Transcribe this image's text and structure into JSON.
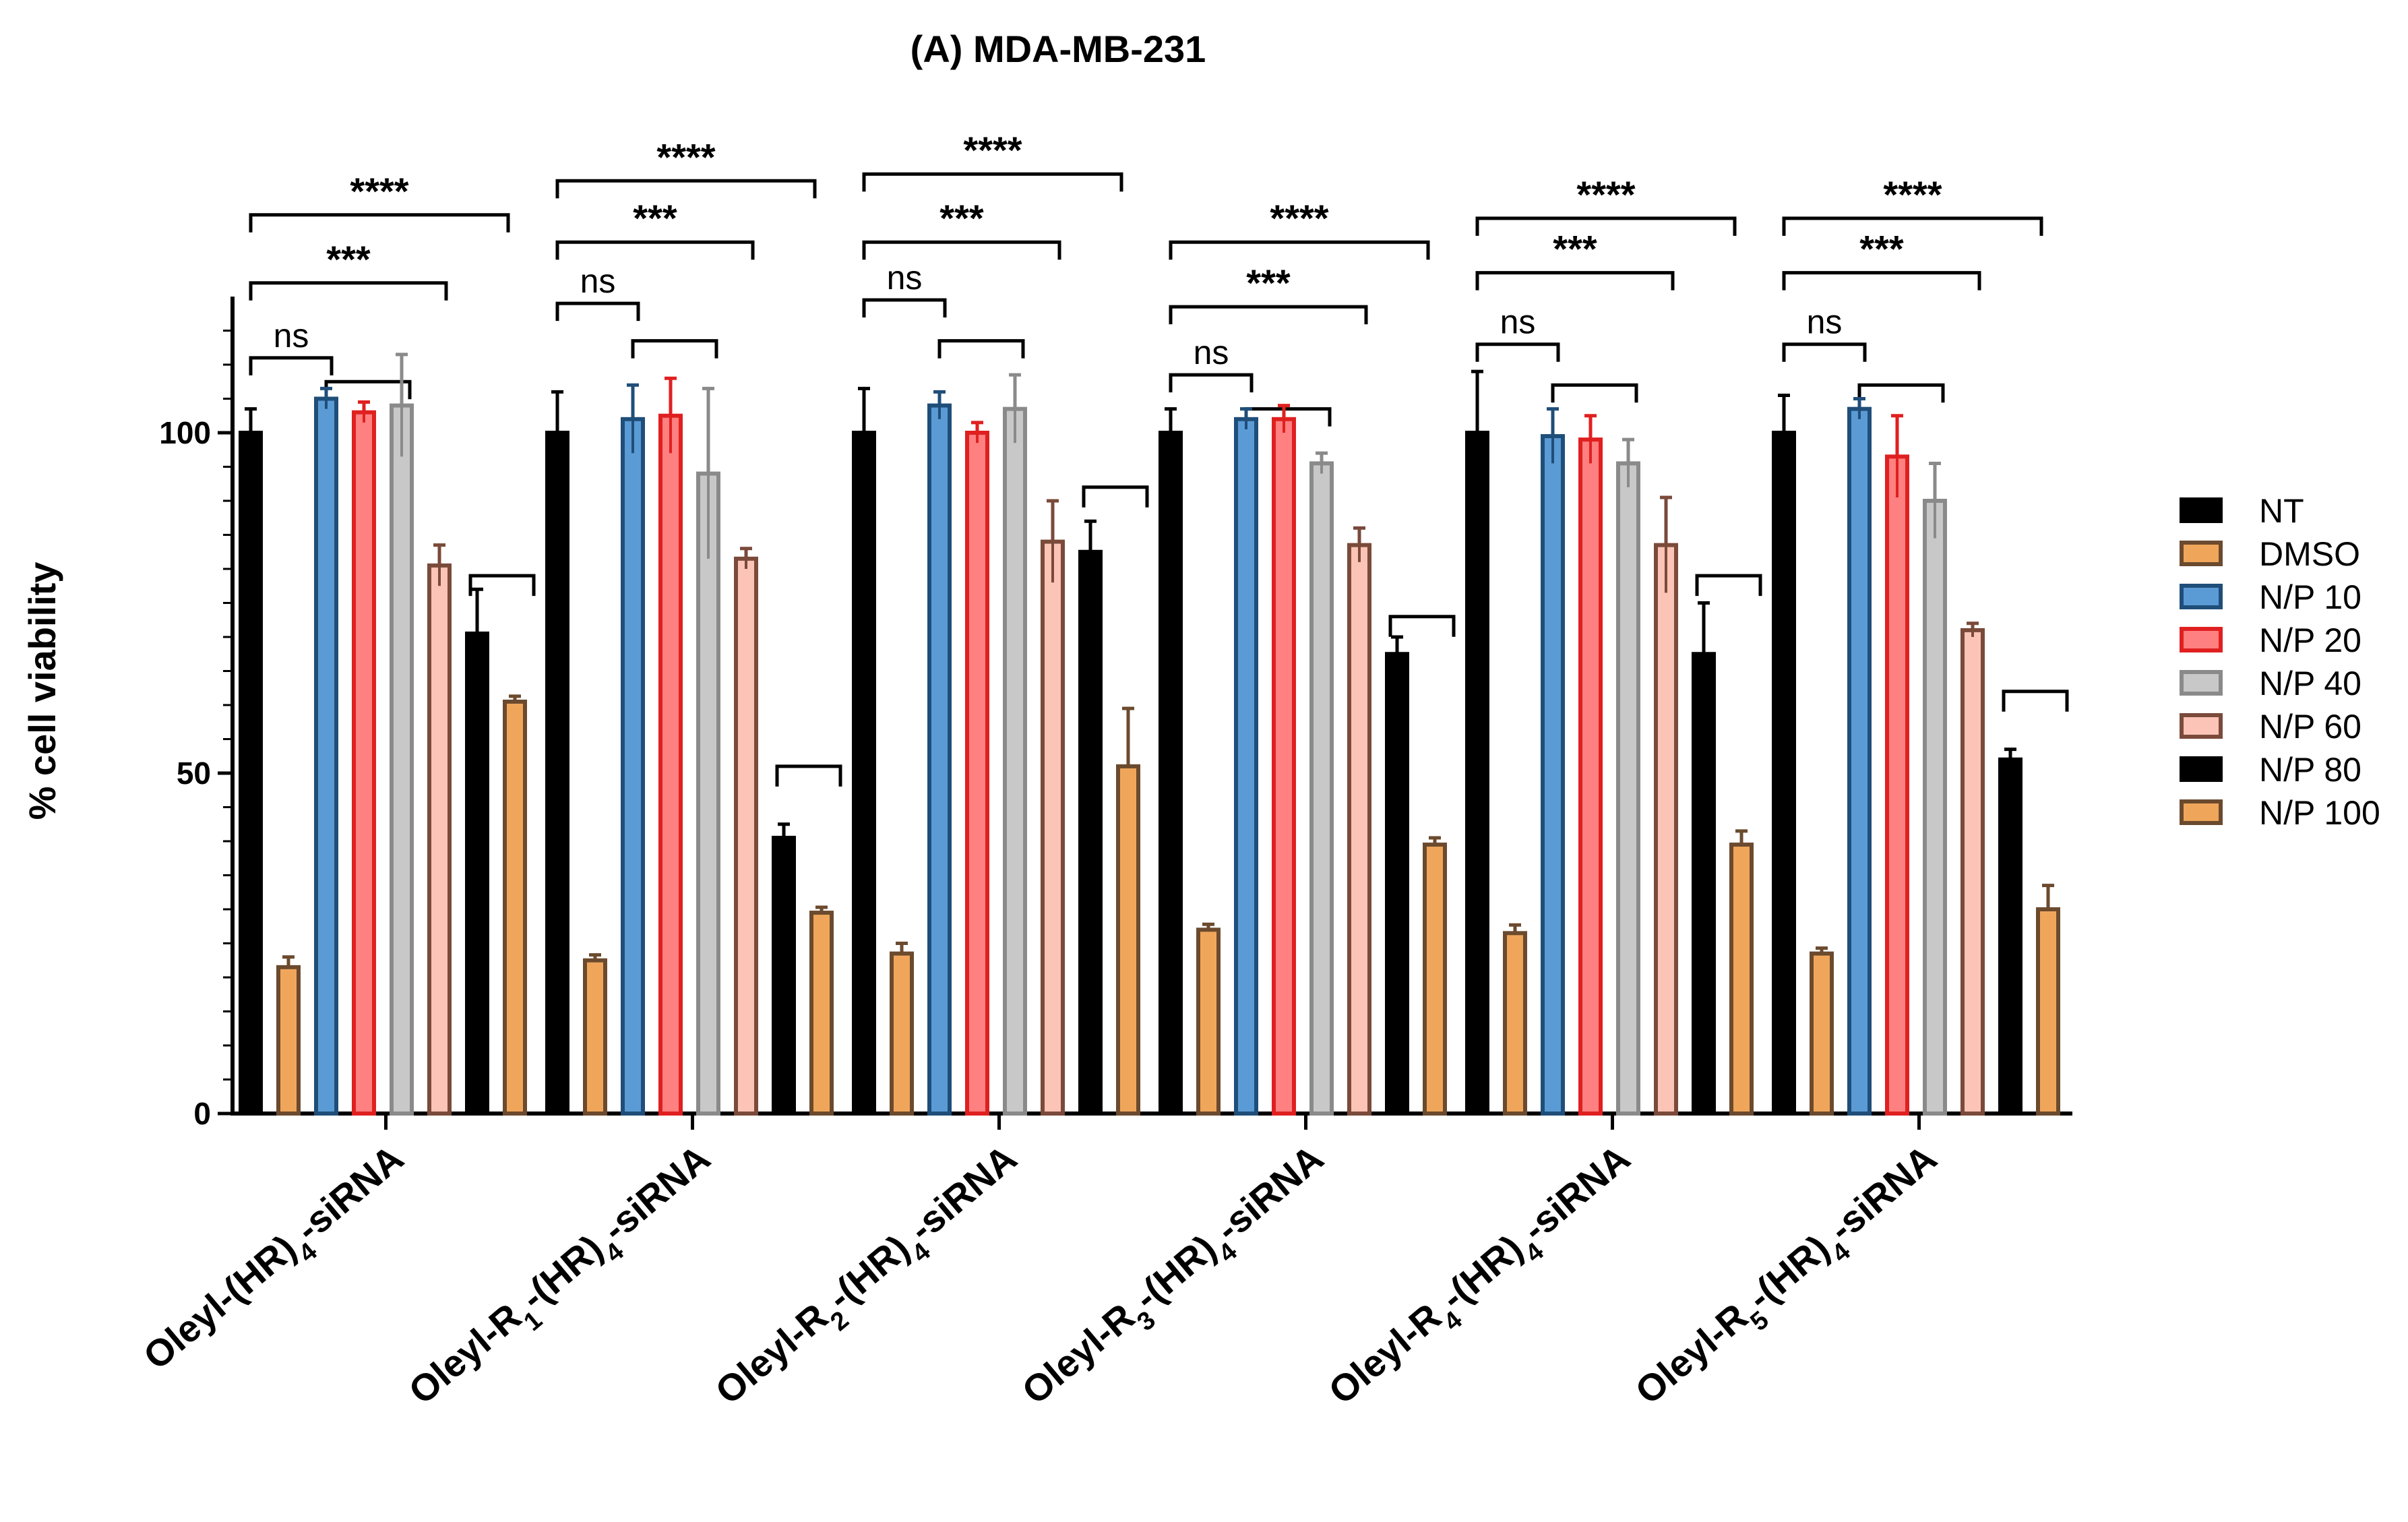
{
  "chart_data": {
    "type": "bar",
    "title": "(A) MDA-MB-231",
    "xlabel": "",
    "ylabel": "% cell viability",
    "ylim": [
      0,
      120
    ],
    "yticks": [
      "0",
      "50",
      "100"
    ],
    "categories": [
      {
        "prefix": "Oleyl-",
        "sub": "",
        "mid": "(HR)",
        "sub2": "4",
        "suffix": "-siRNA"
      },
      {
        "prefix": "Oleyl-R",
        "sub": "1",
        "mid": "-(HR)",
        "sub2": "4",
        "suffix": "-siRNA"
      },
      {
        "prefix": "Oleyl-R",
        "sub": "2",
        "mid": "-(HR)",
        "sub2": "4",
        "suffix": "-siRNA"
      },
      {
        "prefix": "Oleyl-R",
        "sub": "3",
        "mid": "-(HR)",
        "sub2": "4",
        "suffix": "-siRNA"
      },
      {
        "prefix": "Oleyl-R",
        "sub": "4",
        "mid": "-(HR)",
        "sub2": "4",
        "suffix": "-siRNA"
      },
      {
        "prefix": "Oleyl-R",
        "sub": "5",
        "mid": "-(HR)",
        "sub2": "4",
        "suffix": "-siRNA"
      }
    ],
    "series": [
      {
        "name": "NT",
        "fill": "#000000",
        "stroke": "#000000",
        "values": [
          100,
          100,
          100,
          100,
          100,
          100
        ],
        "errors": [
          3.5,
          6,
          6.5,
          3.5,
          9,
          5.5
        ]
      },
      {
        "name": "DMSO",
        "fill": "#f0a65a",
        "stroke": "#6b4a2e",
        "values": [
          21.5,
          22.5,
          23.5,
          27,
          26.5,
          23.5
        ],
        "errors": [
          1.5,
          0.8,
          1.5,
          0.8,
          1.2,
          0.8
        ]
      },
      {
        "name": "N/P 10",
        "fill": "#5b9bd5",
        "stroke": "#1f4e79",
        "values": [
          105,
          102,
          104,
          102,
          99.5,
          103.5
        ],
        "errors": [
          1.5,
          5,
          2,
          1.5,
          4,
          1.5
        ]
      },
      {
        "name": "N/P 20",
        "fill": "#ff8080",
        "stroke": "#e02020",
        "values": [
          103,
          102.5,
          100,
          102,
          99,
          96.5
        ],
        "errors": [
          1.5,
          5.5,
          1.5,
          2,
          3.5,
          6
        ]
      },
      {
        "name": "N/P 40",
        "fill": "#c8c8c8",
        "stroke": "#8a8a8a",
        "values": [
          104,
          94,
          103.5,
          95.5,
          95.5,
          90
        ],
        "errors": [
          7.5,
          12.5,
          5,
          1.5,
          3.5,
          5.5
        ]
      },
      {
        "name": "N/P 60",
        "fill": "#fbc4b6",
        "stroke": "#7a4a3a",
        "values": [
          80.5,
          81.5,
          84,
          83.5,
          83.5,
          71
        ],
        "errors": [
          3,
          1.5,
          6,
          2.5,
          7,
          1
        ]
      },
      {
        "name": "N/P 80",
        "fill": "#000000",
        "stroke": "#000000",
        "values": [
          70.5,
          40.5,
          82.5,
          67.5,
          67.5,
          52
        ],
        "errors": [
          6.5,
          2,
          4.5,
          2.5,
          7.5,
          1.5
        ]
      },
      {
        "name": "N/P 100",
        "fill": "#f0a65a",
        "stroke": "#6b4a2e",
        "values": [
          60.5,
          29.5,
          51,
          39.5,
          39.5,
          30
        ],
        "errors": [
          0.8,
          0.8,
          8.5,
          1,
          2,
          3.5
        ]
      }
    ],
    "significance": [
      {
        "ns": "ns",
        "three": "***",
        "four": "****"
      },
      {
        "ns": "ns",
        "three": "***",
        "four": "****"
      },
      {
        "ns": "ns",
        "three": "***",
        "four": "****"
      },
      {
        "ns": "ns",
        "three": "***",
        "four": "****"
      },
      {
        "ns": "ns",
        "three": "***",
        "four": "****"
      },
      {
        "ns": "ns",
        "three": "***",
        "four": "****"
      }
    ],
    "legend": [
      "NT",
      "DMSO",
      "N/P 10",
      "N/P 20",
      "N/P 40",
      "N/P 60",
      "N/P 80",
      "N/P 100"
    ]
  }
}
